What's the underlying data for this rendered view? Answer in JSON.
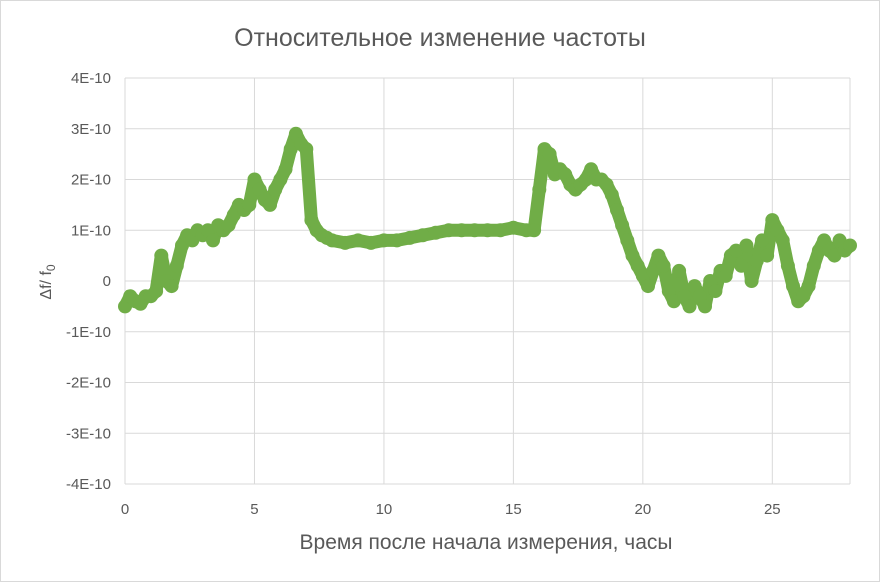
{
  "chart_data": {
    "type": "scatter",
    "title": "Относительное изменение частоты",
    "xlabel": "Время после начала измерения, часы",
    "ylabel_main": "Δf/ f",
    "ylabel_sub": "0",
    "xlim": [
      0,
      28
    ],
    "ylim": [
      -4e-10,
      4e-10
    ],
    "x_ticks": [
      0,
      5,
      10,
      15,
      20,
      25
    ],
    "x_tick_labels": [
      "0",
      "5",
      "10",
      "15",
      "20",
      "25"
    ],
    "y_ticks": [
      4e-10,
      3e-10,
      2e-10,
      1e-10,
      0,
      -1e-10,
      -2e-10,
      -3e-10,
      -4e-10
    ],
    "y_tick_labels": [
      "4E-10",
      "3E-10",
      "2E-10",
      "1E-10",
      "0",
      "-1E-10",
      "-2E-10",
      "-3E-10",
      "-4E-10"
    ],
    "grid": "horizontal and vertical major",
    "legend": "none",
    "color": "#70ad47",
    "series": [
      {
        "x": [
          0,
          0.2,
          0.4,
          0.6,
          0.8,
          1.0,
          1.2,
          1.4,
          1.6,
          1.8,
          2.0,
          2.2,
          2.4,
          2.6,
          2.8,
          3.0,
          3.2,
          3.4,
          3.6,
          3.8,
          4.0,
          4.2,
          4.4,
          4.6,
          4.8,
          5.0,
          5.2,
          5.4,
          5.6,
          5.8,
          6.0,
          6.2,
          6.4,
          6.6,
          6.8,
          7.0,
          7.2,
          7.4,
          7.6,
          7.8,
          8.0,
          8.5,
          9.0,
          9.5,
          10.0,
          10.5,
          11.0,
          11.5,
          12.0,
          12.5,
          13.0,
          13.5,
          14.0,
          14.5,
          15.0,
          15.5,
          15.8,
          16.0,
          16.2,
          16.4,
          16.6,
          16.8,
          17.0,
          17.2,
          17.4,
          17.6,
          17.8,
          18.0,
          18.2,
          18.4,
          18.6,
          18.8,
          19.0,
          19.2,
          19.4,
          19.6,
          19.8,
          20.0,
          20.2,
          20.4,
          20.6,
          20.8,
          21.0,
          21.2,
          21.4,
          21.6,
          21.8,
          22.0,
          22.2,
          22.4,
          22.6,
          22.8,
          23.0,
          23.2,
          23.4,
          23.6,
          23.8,
          24.0,
          24.2,
          24.4,
          24.6,
          24.8,
          25.0,
          25.2,
          25.4,
          25.6,
          25.8,
          26.0,
          26.2,
          26.4,
          26.6,
          26.8,
          27.0,
          27.2,
          27.4,
          27.6,
          27.8,
          28.0
        ],
        "y": [
          -5e-11,
          -3e-11,
          -4e-11,
          -4.5e-11,
          -3e-11,
          -3e-11,
          -2e-11,
          5e-11,
          0,
          -1e-11,
          3e-11,
          7e-11,
          9e-11,
          8e-11,
          1e-10,
          9e-11,
          1e-10,
          8e-11,
          1.1e-10,
          1e-10,
          1.1e-10,
          1.3e-10,
          1.5e-10,
          1.4e-10,
          1.5e-10,
          2e-10,
          1.8e-10,
          1.6e-10,
          1.5e-10,
          1.8e-10,
          2e-10,
          2.2e-10,
          2.6e-10,
          2.9e-10,
          2.7e-10,
          2.6e-10,
          1.2e-10,
          1e-10,
          9e-11,
          8.5e-11,
          8e-11,
          7.5e-11,
          8e-11,
          7.5e-11,
          8e-11,
          8e-11,
          8.5e-11,
          9e-11,
          9.5e-11,
          1e-10,
          1e-10,
          1e-10,
          1e-10,
          1e-10,
          1.05e-10,
          1e-10,
          1e-10,
          1.8e-10,
          2.6e-10,
          2.5e-10,
          2.1e-10,
          2.2e-10,
          2.1e-10,
          1.9e-10,
          1.8e-10,
          1.9e-10,
          2e-10,
          2.2e-10,
          2e-10,
          2e-10,
          1.9e-10,
          1.7e-10,
          1.4e-10,
          1.1e-10,
          8e-11,
          5e-11,
          3e-11,
          1e-11,
          -1e-11,
          2e-11,
          5e-11,
          3e-11,
          -2e-11,
          -4e-11,
          2e-11,
          -3e-11,
          -5e-11,
          -1e-11,
          -3e-11,
          -5e-11,
          0,
          -2e-11,
          2e-11,
          1e-11,
          5e-11,
          6e-11,
          3e-11,
          7e-11,
          0,
          4e-11,
          8e-11,
          5e-11,
          1.2e-10,
          1e-10,
          8e-11,
          3e-11,
          -1e-11,
          -4e-11,
          -3e-11,
          -1e-11,
          3e-11,
          6e-11,
          8e-11,
          6e-11,
          5e-11,
          8e-11,
          6e-11,
          7e-11
        ]
      }
    ]
  }
}
